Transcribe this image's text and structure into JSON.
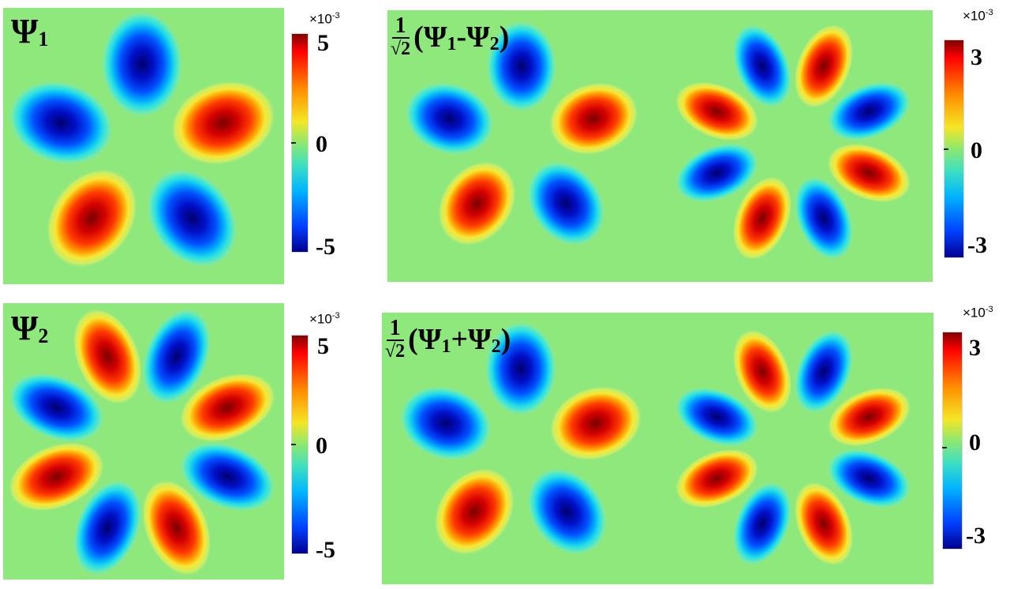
{
  "colormap": "jet",
  "background_color": "#8fe87c",
  "chart_data": [
    {
      "type": "heatmap",
      "id": "psi1",
      "title_symbol": "Ψ",
      "title_sub": "1",
      "colorbar": {
        "exponent_prefix": "×10",
        "exponent": "-3",
        "min_label": "-5",
        "mid_label": "0",
        "max_label": "5",
        "range": [
          -5,
          5
        ]
      },
      "lobes": [
        {
          "angle_deg": 90,
          "sign": -1
        },
        {
          "angle_deg": 18,
          "sign": 1
        },
        {
          "angle_deg": -54,
          "sign": -1
        },
        {
          "angle_deg": -126,
          "sign": 1
        },
        {
          "angle_deg": 162,
          "sign": -1
        }
      ]
    },
    {
      "type": "heatmap",
      "id": "psi2",
      "title_symbol": "Ψ",
      "title_sub": "2",
      "colorbar": {
        "exponent_prefix": "×10",
        "exponent": "-3",
        "min_label": "-5",
        "mid_label": "0",
        "max_label": "5",
        "range": [
          -5,
          5
        ]
      },
      "lobes": [
        {
          "angle_deg": 68,
          "sign": -1
        },
        {
          "angle_deg": 112,
          "sign": 1
        },
        {
          "angle_deg": 22,
          "sign": 1
        },
        {
          "angle_deg": 158,
          "sign": -1
        },
        {
          "angle_deg": -22,
          "sign": -1
        },
        {
          "angle_deg": -158,
          "sign": 1
        },
        {
          "angle_deg": -68,
          "sign": 1
        },
        {
          "angle_deg": -112,
          "sign": -1
        }
      ]
    },
    {
      "type": "heatmap",
      "id": "psi-minus",
      "title_frac_num": "1",
      "title_frac_den": "√2",
      "title_expr": [
        "(Ψ",
        "1",
        "-Ψ",
        "2",
        ")"
      ],
      "colorbar": {
        "exponent_prefix": "×10",
        "exponent": "-3",
        "min_label": "-3",
        "mid_label": "0",
        "max_label": "3",
        "range": [
          -3,
          3
        ]
      },
      "left_lobes": [
        {
          "angle_deg": 90,
          "sign": -1
        },
        {
          "angle_deg": 18,
          "sign": 1
        },
        {
          "angle_deg": -54,
          "sign": -1
        },
        {
          "angle_deg": -126,
          "sign": 1
        },
        {
          "angle_deg": 162,
          "sign": -1
        }
      ],
      "right_lobes": [
        {
          "angle_deg": 68,
          "sign": 1
        },
        {
          "angle_deg": 112,
          "sign": -1
        },
        {
          "angle_deg": 22,
          "sign": -1
        },
        {
          "angle_deg": 158,
          "sign": 1
        },
        {
          "angle_deg": -22,
          "sign": 1
        },
        {
          "angle_deg": -158,
          "sign": -1
        },
        {
          "angle_deg": -68,
          "sign": -1
        },
        {
          "angle_deg": -112,
          "sign": 1
        }
      ]
    },
    {
      "type": "heatmap",
      "id": "psi-plus",
      "title_frac_num": "1",
      "title_frac_den": "√2",
      "title_expr": [
        "(Ψ",
        "1",
        "+Ψ",
        "2",
        ")"
      ],
      "colorbar": {
        "exponent_prefix": "×10",
        "exponent": "-3",
        "min_label": "-3",
        "mid_label": "0",
        "max_label": "3",
        "range": [
          -3,
          3
        ]
      },
      "left_lobes": [
        {
          "angle_deg": 90,
          "sign": -1
        },
        {
          "angle_deg": 18,
          "sign": 1
        },
        {
          "angle_deg": -54,
          "sign": -1
        },
        {
          "angle_deg": -126,
          "sign": 1
        },
        {
          "angle_deg": 162,
          "sign": -1
        }
      ],
      "right_lobes": [
        {
          "angle_deg": 68,
          "sign": -1
        },
        {
          "angle_deg": 112,
          "sign": 1
        },
        {
          "angle_deg": 22,
          "sign": 1
        },
        {
          "angle_deg": 158,
          "sign": -1
        },
        {
          "angle_deg": -22,
          "sign": -1
        },
        {
          "angle_deg": -158,
          "sign": 1
        },
        {
          "angle_deg": -68,
          "sign": 1
        },
        {
          "angle_deg": -112,
          "sign": -1
        }
      ]
    }
  ]
}
